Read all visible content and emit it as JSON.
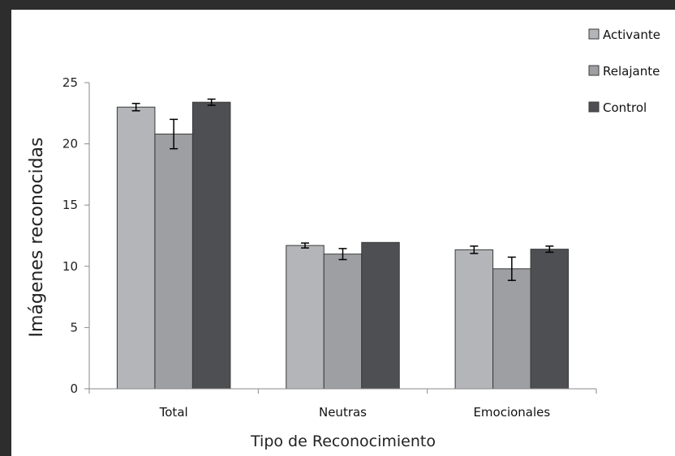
{
  "chart_data": {
    "type": "bar",
    "title": "",
    "xlabel": "Tipo de Reconocimiento",
    "ylabel": "Imágenes reconocidas",
    "categories": [
      "Total",
      "Neutras",
      "Emocionales"
    ],
    "ylim": [
      0,
      25
    ],
    "yticks": [
      "0",
      "5",
      "10",
      "15",
      "20",
      "25"
    ],
    "grid": false,
    "legend_position": "top-right",
    "series": [
      {
        "name": "Activante",
        "color": "#b3b5b8",
        "values": [
          23.0,
          11.7,
          11.35
        ],
        "errors": [
          0.3,
          0.2,
          0.3
        ]
      },
      {
        "name": "Relajante",
        "color": "#9d9fa2",
        "values": [
          20.8,
          11.0,
          9.8
        ],
        "errors": [
          1.2,
          0.45,
          0.95
        ]
      },
      {
        "name": "Control",
        "color": "#4d4f52",
        "values": [
          23.4,
          11.95,
          11.4
        ],
        "errors": [
          0.25,
          0.0,
          0.25
        ]
      }
    ]
  }
}
